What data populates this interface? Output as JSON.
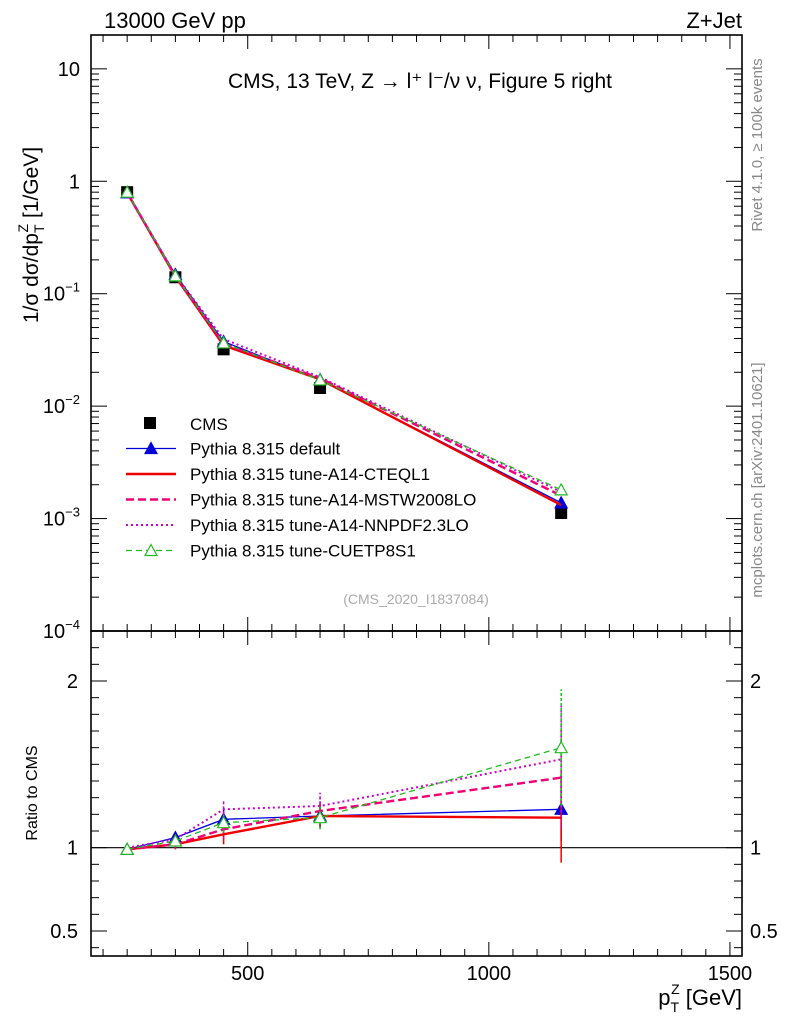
{
  "header": {
    "left": "13000 GeV pp",
    "right": "Z+Jet"
  },
  "side_labels": {
    "rivet": "Rivet 4.1.0, ≥ 100k events",
    "mcplots": "mcplots.cern.ch [arXiv:2401.10621]"
  },
  "chart_data": {
    "type": "line",
    "title": "CMS, 13 TeV, Z → l⁺ l⁻/ν ν, Figure 5 right",
    "watermark": "(CMS_2020_I1837084)",
    "xlabel": "p_T^Z [GeV]",
    "xlabel_main": "p",
    "xlabel_sub": "T",
    "xlabel_sup": "Z",
    "xlabel_unit": " [GeV]",
    "ylabel": "1/σ dσ/dp_T^Z [1/GeV]",
    "ylabel_main": "1/σ dσ/dp",
    "ylabel_sub": "T",
    "ylabel_sup": "Z",
    "ylabel_unit": " [1/GeV]",
    "ratio_ylabel": "Ratio to CMS",
    "x_range": [
      175,
      1525
    ],
    "y_log_range": [
      0.0001,
      20
    ],
    "ratio_range": [
      0.35,
      2.3
    ],
    "x_ticks": [
      500,
      1000,
      1500
    ],
    "x_tick_labels": [
      "500",
      "1000",
      "1500"
    ],
    "y_ticks": [
      {
        "value": 10,
        "label": "10",
        "exp": ""
      },
      {
        "value": 1,
        "label": "1",
        "exp": ""
      },
      {
        "value": 0.1,
        "label": "10",
        "exp": "−1"
      },
      {
        "value": 0.01,
        "label": "10",
        "exp": "−2"
      },
      {
        "value": 0.001,
        "label": "10",
        "exp": "−3"
      },
      {
        "value": 0.0001,
        "label": "10",
        "exp": "−4"
      }
    ],
    "ratio_ticks": [
      {
        "value": 0.5,
        "label": "0.5"
      },
      {
        "value": 1,
        "label": "1"
      },
      {
        "value": 2,
        "label": "2"
      }
    ],
    "x": [
      250,
      350,
      450,
      650,
      1150
    ],
    "data": {
      "name": "CMS",
      "values": [
        0.8,
        0.14,
        0.032,
        0.0145,
        0.00112
      ],
      "ratio_err": [
        0.02,
        0.03,
        0.06,
        0.07,
        0.18
      ]
    },
    "series": [
      {
        "name": "Pythia 8.315 default",
        "color": "#0000dd",
        "style": "solid",
        "width": 1.3,
        "marker": "triangle-filled",
        "values": [
          0.79,
          0.148,
          0.0375,
          0.0172,
          0.00138
        ],
        "ratio": [
          0.99,
          1.06,
          1.17,
          1.19,
          1.23
        ],
        "ratio_err": [
          0.02,
          0.03,
          0.06,
          0.07,
          0.19
        ]
      },
      {
        "name": "Pythia 8.315 tune-A14-CTEQL1",
        "color": "#ee0000",
        "style": "solid",
        "width": 2.4,
        "marker": "none",
        "values": [
          0.79,
          0.142,
          0.0347,
          0.0173,
          0.00132
        ],
        "ratio": [
          0.99,
          1.02,
          1.08,
          1.19,
          1.18
        ],
        "ratio_err": [
          0.02,
          0.03,
          0.06,
          0.07,
          0.27
        ]
      },
      {
        "name": "Pythia 8.315 tune-A14-MSTW2008LO",
        "color": "#ee0077",
        "style": "dashed",
        "width": 2.4,
        "marker": "none",
        "values": [
          0.79,
          0.143,
          0.0358,
          0.0177,
          0.0016
        ],
        "ratio": [
          0.99,
          1.02,
          1.11,
          1.22,
          1.42
        ],
        "ratio_err": [
          0.02,
          0.03,
          0.06,
          0.08,
          0.3
        ]
      },
      {
        "name": "Pythia 8.315 tune-A14-NNPDF2.3LO",
        "color": "#cc00cc",
        "style": "dotted",
        "width": 2.0,
        "marker": "none",
        "values": [
          0.8,
          0.147,
          0.0395,
          0.0181,
          0.00172
        ],
        "ratio": [
          1.0,
          1.05,
          1.23,
          1.25,
          1.53
        ],
        "ratio_err": [
          0.02,
          0.03,
          0.06,
          0.08,
          0.32
        ]
      },
      {
        "name": "Pythia 8.315 tune-CUETP8S1",
        "color": "#22bb22",
        "style": "dashed",
        "width": 1.3,
        "marker": "triangle-open",
        "values": [
          0.8,
          0.144,
          0.0365,
          0.0171,
          0.0018
        ],
        "ratio": [
          0.99,
          1.04,
          1.15,
          1.18,
          1.6
        ],
        "ratio_err": [
          0.02,
          0.03,
          0.06,
          0.07,
          0.35
        ]
      }
    ],
    "legend": "upper-left, below middle",
    "grid": false
  }
}
